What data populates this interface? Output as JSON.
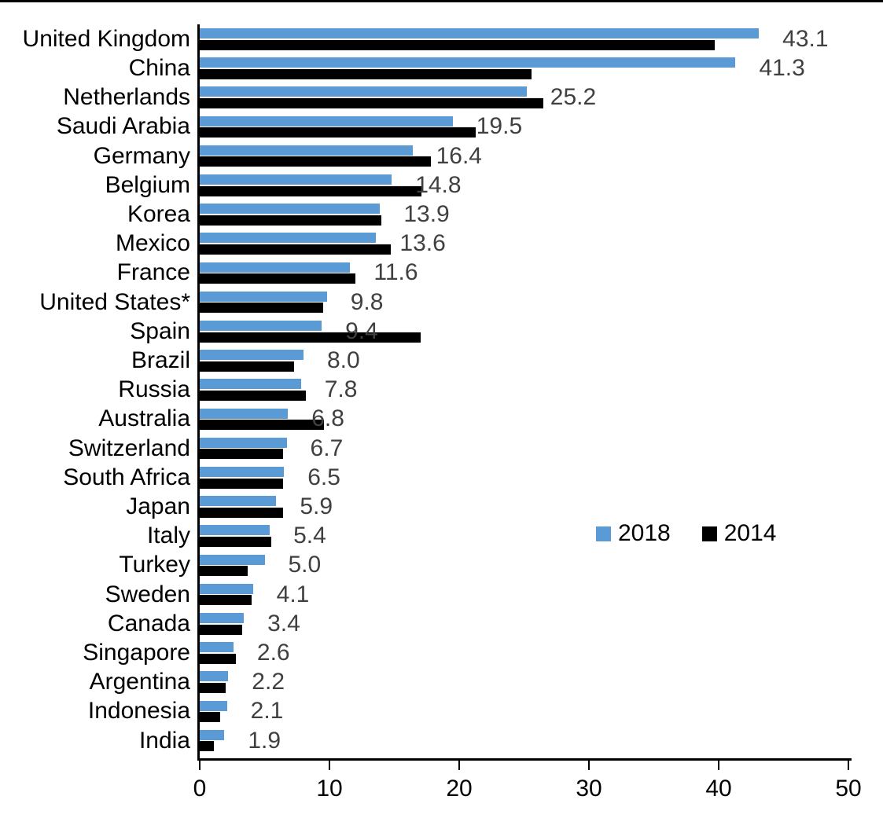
{
  "chart_data": {
    "type": "bar",
    "orientation": "horizontal",
    "title": "",
    "xlabel": "",
    "ylabel": "",
    "xlim": [
      0,
      50
    ],
    "x_ticks": [
      "0",
      "10",
      "20",
      "30",
      "40",
      "50"
    ],
    "grid": false,
    "legend_position": "middle-right",
    "axis_color": "#000000",
    "value_label_color": "#404040",
    "categories": [
      "United Kingdom",
      "China",
      "Netherlands",
      "Saudi Arabia",
      "Germany",
      "Belgium",
      "Korea",
      "Mexico",
      "France",
      "United States*",
      "Spain",
      "Brazil",
      "Russia",
      "Australia",
      "Switzerland",
      "South Africa",
      "Japan",
      "Italy",
      "Turkey",
      "Sweden",
      "Canada",
      "Singapore",
      "Argentina",
      "Indonesia",
      "India"
    ],
    "series": [
      {
        "name": "2018",
        "color": "#5B9BD5",
        "values": [
          43.1,
          41.3,
          25.2,
          19.5,
          16.4,
          14.8,
          13.9,
          13.6,
          11.6,
          9.8,
          9.4,
          8.0,
          7.8,
          6.8,
          6.7,
          6.5,
          5.9,
          5.4,
          5.0,
          4.1,
          3.4,
          2.6,
          2.2,
          2.1,
          1.9
        ]
      },
      {
        "name": "2014",
        "color": "#000000",
        "values": [
          39.7,
          25.6,
          26.5,
          21.3,
          17.8,
          17.1,
          14.0,
          14.7,
          12.0,
          9.5,
          17.0,
          7.3,
          8.2,
          9.6,
          6.4,
          6.4,
          6.4,
          5.5,
          3.7,
          4.0,
          3.3,
          2.8,
          2.0,
          1.6,
          1.1
        ]
      }
    ],
    "value_labels": [
      "43.1",
      "41.3",
      "25.2",
      "19.5",
      "16.4",
      "14.8",
      "13.9",
      "13.6",
      "11.6",
      "9.8",
      "9.4",
      "8.0",
      "7.8",
      "6.8",
      "6.7",
      "6.5",
      "5.9",
      "5.4",
      "5.0",
      "4.1",
      "3.4",
      "2.6",
      "2.2",
      "2.1",
      "1.9"
    ]
  }
}
